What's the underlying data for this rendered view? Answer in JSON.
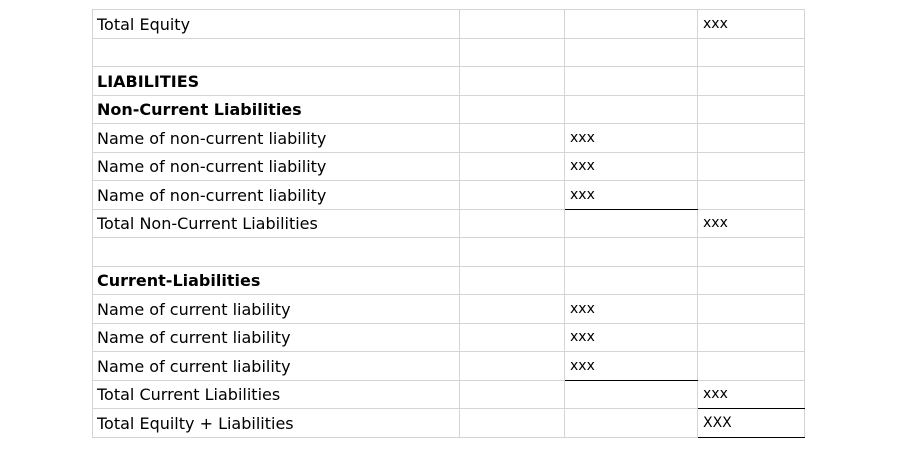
{
  "rows": [
    {
      "label": "Total Equity",
      "bold": false,
      "c2": "",
      "c3": "",
      "c4": "xxx"
    },
    {
      "label": "",
      "bold": false,
      "c2": "",
      "c3": "",
      "c4": ""
    },
    {
      "label": "LIABILITIES",
      "bold": true,
      "c2": "",
      "c3": "",
      "c4": ""
    },
    {
      "label": "Non-Current Liabilities",
      "bold": true,
      "c2": "",
      "c3": "",
      "c4": ""
    },
    {
      "label": "Name of non-current liability",
      "bold": false,
      "c2": "",
      "c3": "xxx",
      "c4": ""
    },
    {
      "label": "Name of non-current liability",
      "bold": false,
      "c2": "",
      "c3": "xxx",
      "c4": ""
    },
    {
      "label": "Name of non-current liability",
      "bold": false,
      "c2": "",
      "c3": "xxx",
      "c4": "",
      "underline_c3": true
    },
    {
      "label": "Total Non-Current Liabilities",
      "bold": false,
      "c2": "",
      "c3": "",
      "c4": "xxx"
    },
    {
      "label": "",
      "bold": false,
      "c2": "",
      "c3": "",
      "c4": ""
    },
    {
      "label": "Current-Liabilities",
      "bold": true,
      "c2": "",
      "c3": "",
      "c4": ""
    },
    {
      "label": "Name of current liability",
      "bold": false,
      "c2": "",
      "c3": "xxx",
      "c4": ""
    },
    {
      "label": "Name of current liability",
      "bold": false,
      "c2": "",
      "c3": "xxx",
      "c4": ""
    },
    {
      "label": "Name of current liability",
      "bold": false,
      "c2": "",
      "c3": "xxx",
      "c4": "",
      "underline_c3": true
    },
    {
      "label": "Total Current Liabilities",
      "bold": false,
      "c2": "",
      "c3": "",
      "c4": "xxx",
      "underline_c4": true
    },
    {
      "label": "Total Equilty + Liabilities",
      "bold": false,
      "c2": "",
      "c3": "",
      "c4": "XXX",
      "underline_c4": true
    }
  ]
}
